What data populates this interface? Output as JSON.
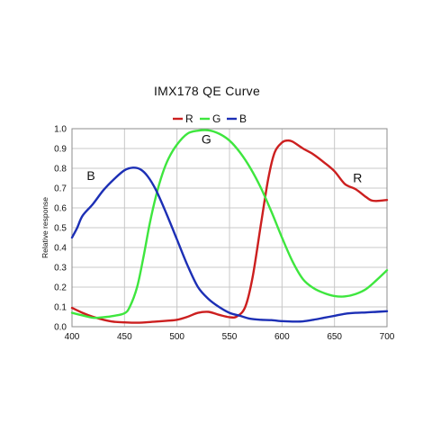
{
  "chart_data": {
    "type": "line",
    "title": "IMX178 QE Curve",
    "xlabel": "",
    "ylabel": "Relative response",
    "xlim": [
      400,
      700
    ],
    "ylim": [
      0,
      1.0
    ],
    "x_ticks": [
      "400",
      "450",
      "500",
      "550",
      "600",
      "650",
      "700"
    ],
    "y_ticks": [
      "0.0",
      "0.1",
      "0.2",
      "0.3",
      "0.4",
      "0.5",
      "0.6",
      "0.7",
      "0.8",
      "0.9",
      "1.0"
    ],
    "grid": true,
    "legend_position": "top",
    "series": [
      {
        "name": "R",
        "color": "#cc1f1f",
        "points": [
          [
            400,
            0.095
          ],
          [
            410,
            0.07
          ],
          [
            420,
            0.05
          ],
          [
            430,
            0.035
          ],
          [
            440,
            0.025
          ],
          [
            450,
            0.022
          ],
          [
            460,
            0.02
          ],
          [
            470,
            0.022
          ],
          [
            480,
            0.026
          ],
          [
            490,
            0.03
          ],
          [
            500,
            0.035
          ],
          [
            510,
            0.05
          ],
          [
            520,
            0.07
          ],
          [
            530,
            0.075
          ],
          [
            540,
            0.06
          ],
          [
            550,
            0.048
          ],
          [
            557,
            0.052
          ],
          [
            565,
            0.1
          ],
          [
            572,
            0.25
          ],
          [
            580,
            0.52
          ],
          [
            587,
            0.75
          ],
          [
            593,
            0.88
          ],
          [
            600,
            0.93
          ],
          [
            605,
            0.94
          ],
          [
            610,
            0.935
          ],
          [
            620,
            0.9
          ],
          [
            630,
            0.87
          ],
          [
            640,
            0.83
          ],
          [
            650,
            0.785
          ],
          [
            660,
            0.72
          ],
          [
            670,
            0.695
          ],
          [
            680,
            0.655
          ],
          [
            685,
            0.638
          ],
          [
            690,
            0.635
          ],
          [
            700,
            0.64
          ]
        ]
      },
      {
        "name": "G",
        "color": "#3ee63e",
        "points": [
          [
            400,
            0.07
          ],
          [
            410,
            0.057
          ],
          [
            420,
            0.045
          ],
          [
            430,
            0.048
          ],
          [
            440,
            0.055
          ],
          [
            450,
            0.068
          ],
          [
            455,
            0.1
          ],
          [
            462,
            0.2
          ],
          [
            468,
            0.35
          ],
          [
            474,
            0.52
          ],
          [
            480,
            0.66
          ],
          [
            486,
            0.77
          ],
          [
            492,
            0.85
          ],
          [
            500,
            0.92
          ],
          [
            510,
            0.975
          ],
          [
            520,
            0.99
          ],
          [
            530,
            0.992
          ],
          [
            540,
            0.975
          ],
          [
            550,
            0.94
          ],
          [
            560,
            0.88
          ],
          [
            570,
            0.8
          ],
          [
            580,
            0.7
          ],
          [
            590,
            0.58
          ],
          [
            600,
            0.45
          ],
          [
            610,
            0.33
          ],
          [
            620,
            0.24
          ],
          [
            630,
            0.195
          ],
          [
            640,
            0.17
          ],
          [
            650,
            0.155
          ],
          [
            660,
            0.153
          ],
          [
            670,
            0.165
          ],
          [
            680,
            0.19
          ],
          [
            690,
            0.235
          ],
          [
            700,
            0.285
          ]
        ]
      },
      {
        "name": "B",
        "color": "#1c2fb5",
        "points": [
          [
            400,
            0.45
          ],
          [
            405,
            0.5
          ],
          [
            410,
            0.56
          ],
          [
            420,
            0.62
          ],
          [
            430,
            0.69
          ],
          [
            440,
            0.745
          ],
          [
            450,
            0.79
          ],
          [
            458,
            0.803
          ],
          [
            465,
            0.795
          ],
          [
            472,
            0.76
          ],
          [
            480,
            0.69
          ],
          [
            490,
            0.57
          ],
          [
            500,
            0.44
          ],
          [
            510,
            0.31
          ],
          [
            520,
            0.2
          ],
          [
            530,
            0.14
          ],
          [
            540,
            0.1
          ],
          [
            550,
            0.07
          ],
          [
            560,
            0.055
          ],
          [
            570,
            0.04
          ],
          [
            580,
            0.035
          ],
          [
            590,
            0.033
          ],
          [
            600,
            0.028
          ],
          [
            610,
            0.026
          ],
          [
            620,
            0.027
          ],
          [
            630,
            0.035
          ],
          [
            640,
            0.045
          ],
          [
            650,
            0.055
          ],
          [
            660,
            0.065
          ],
          [
            670,
            0.07
          ],
          [
            680,
            0.072
          ],
          [
            690,
            0.075
          ],
          [
            700,
            0.078
          ]
        ]
      }
    ],
    "annotations": [
      {
        "text": "B",
        "x": 418,
        "y": 0.74
      },
      {
        "text": "G",
        "x": 528,
        "y": 0.925
      },
      {
        "text": "R",
        "x": 672,
        "y": 0.73
      }
    ]
  }
}
